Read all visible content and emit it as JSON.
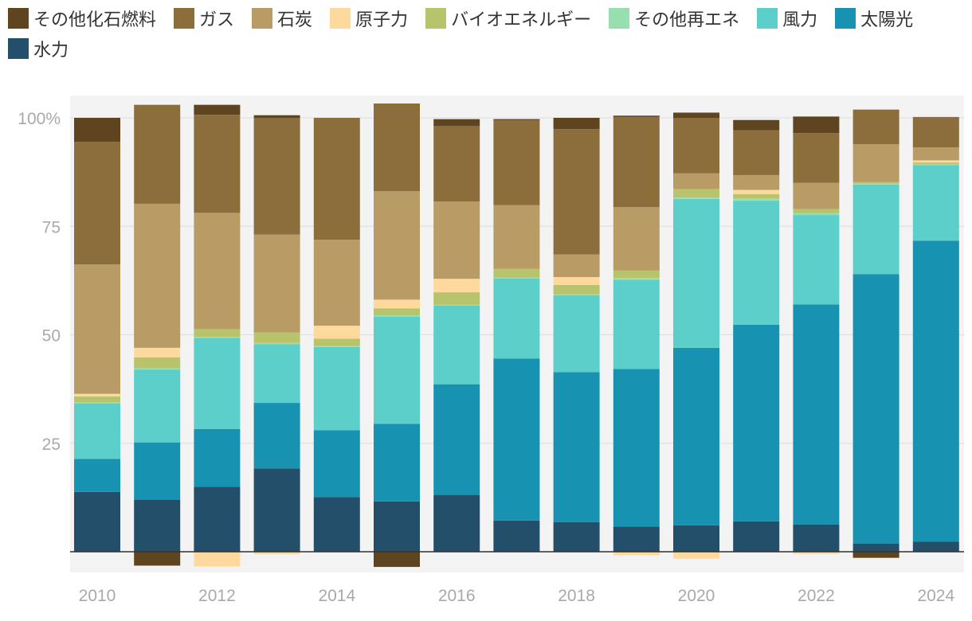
{
  "chart_data": {
    "type": "bar",
    "stacked": true,
    "title": "",
    "xlabel": "",
    "ylabel": "",
    "ylim": [
      -5,
      105
    ],
    "y_ticks": [
      {
        "value": 100,
        "label": "100%"
      },
      {
        "value": 75,
        "label": "75"
      },
      {
        "value": 50,
        "label": "50"
      },
      {
        "value": 25,
        "label": "25"
      }
    ],
    "categories": [
      "2010",
      "2011",
      "2012",
      "2013",
      "2014",
      "2015",
      "2016",
      "2017",
      "2018",
      "2019",
      "2020",
      "2021",
      "2022",
      "2023",
      "2024"
    ],
    "x_tick_labels": [
      "2010",
      "2012",
      "2014",
      "2016",
      "2018",
      "2020",
      "2022",
      "2024"
    ],
    "x_tick_indices": [
      0,
      2,
      4,
      6,
      8,
      10,
      12,
      14
    ],
    "series": [
      {
        "key": "hydro",
        "name": "水力",
        "color": "#244f6b",
        "values": [
          13.8,
          12.0,
          15.0,
          19.2,
          12.6,
          11.6,
          13.1,
          7.2,
          6.8,
          5.8,
          6.1,
          7.0,
          6.3,
          1.9,
          2.3
        ]
      },
      {
        "key": "solar",
        "name": "太陽光",
        "color": "#1793b1",
        "values": [
          7.6,
          13.2,
          13.3,
          15.1,
          15.4,
          17.9,
          25.5,
          37.3,
          34.6,
          36.3,
          40.9,
          45.3,
          50.7,
          62.1,
          69.4
        ]
      },
      {
        "key": "wind",
        "name": "風力",
        "color": "#5ccfca",
        "values": [
          12.8,
          16.8,
          21.0,
          13.5,
          19.2,
          24.7,
          18.1,
          18.5,
          17.7,
          20.6,
          34.3,
          28.6,
          20.6,
          20.6,
          17.4
        ]
      },
      {
        "key": "other_re",
        "name": "その他再エネ",
        "color": "#98dfb0",
        "values": [
          0.3,
          0.3,
          0.2,
          0.3,
          0.2,
          0.3,
          0.2,
          0.2,
          0.2,
          0.4,
          0.3,
          0.5,
          0.4,
          0.2,
          0.2
        ]
      },
      {
        "key": "bio",
        "name": "バイオエネルギー",
        "color": "#b8c46c",
        "values": [
          1.3,
          2.5,
          1.8,
          2.4,
          1.7,
          1.6,
          2.9,
          2.0,
          2.2,
          1.7,
          2.0,
          1.0,
          1.0,
          0.4,
          0.4
        ]
      },
      {
        "key": "nuclear",
        "name": "原子力",
        "color": "#fdd99e",
        "values": [
          0.6,
          2.2,
          -3.4,
          -0.6,
          3.0,
          2.0,
          3.1,
          0.0,
          1.8,
          -0.8,
          -1.6,
          1.0,
          -0.5,
          0.0,
          0.5
        ]
      },
      {
        "key": "coal",
        "name": "石炭",
        "color": "#b99b66",
        "values": [
          29.8,
          33.2,
          26.8,
          22.6,
          19.8,
          25.0,
          17.8,
          14.7,
          5.2,
          14.6,
          3.6,
          3.4,
          6.0,
          8.7,
          3.0
        ]
      },
      {
        "key": "gas",
        "name": "ガス",
        "color": "#8b6e3c",
        "values": [
          28.3,
          22.8,
          22.6,
          26.9,
          28.1,
          20.2,
          17.4,
          19.5,
          28.9,
          20.8,
          12.8,
          10.3,
          11.5,
          8.0,
          7.0
        ]
      },
      {
        "key": "other_fossil",
        "name": "その他化石燃料",
        "color": "#5e4520",
        "values": [
          5.5,
          -3.2,
          2.3,
          0.6,
          0.0,
          -3.5,
          1.6,
          0.3,
          2.6,
          0.3,
          1.2,
          2.4,
          3.8,
          -1.4,
          0.0
        ]
      }
    ],
    "legend": {
      "position": "top"
    },
    "grid": true
  }
}
